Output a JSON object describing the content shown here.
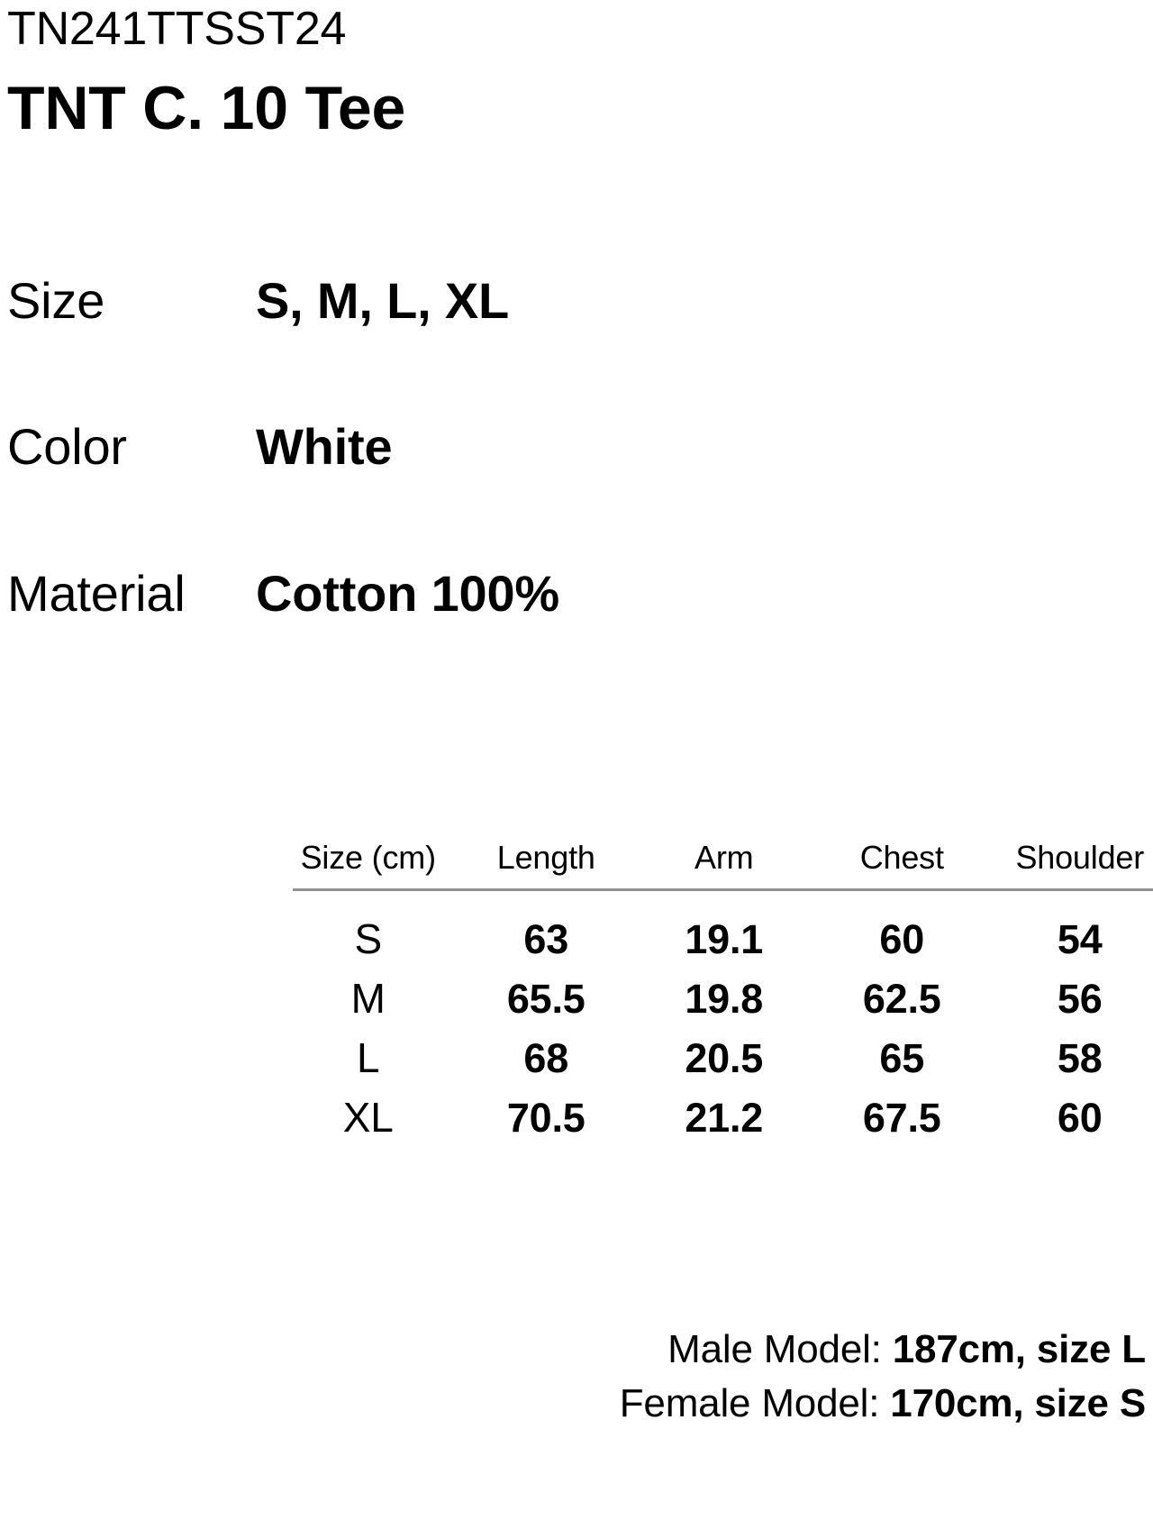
{
  "product": {
    "code": "TN241TTSST24",
    "name": "TNT C. 10 Tee"
  },
  "specs": [
    {
      "label": "Size",
      "value": "S, M, L, XL"
    },
    {
      "label": "Color",
      "value": "White"
    },
    {
      "label": "Material",
      "value": "Cotton 100%"
    }
  ],
  "size_table": {
    "columns": [
      "Size (cm)",
      "Length",
      "Arm",
      "Chest",
      "Shoulder"
    ],
    "rows": [
      {
        "size": "S",
        "values": [
          "63",
          "19.1",
          "60",
          "54"
        ]
      },
      {
        "size": "M",
        "values": [
          "65.5",
          "19.8",
          "62.5",
          "56"
        ]
      },
      {
        "size": "L",
        "values": [
          "68",
          "20.5",
          "65",
          "58"
        ]
      },
      {
        "size": "XL",
        "values": [
          "70.5",
          "21.2",
          "67.5",
          "60"
        ]
      }
    ]
  },
  "model_info": [
    {
      "prefix": "Male Model: ",
      "bold": "187cm, size L"
    },
    {
      "prefix": "Female Model: ",
      "bold": "170cm, size S"
    }
  ],
  "colors": {
    "background": "#ffffff",
    "text": "#000000",
    "divider": "#919191"
  }
}
